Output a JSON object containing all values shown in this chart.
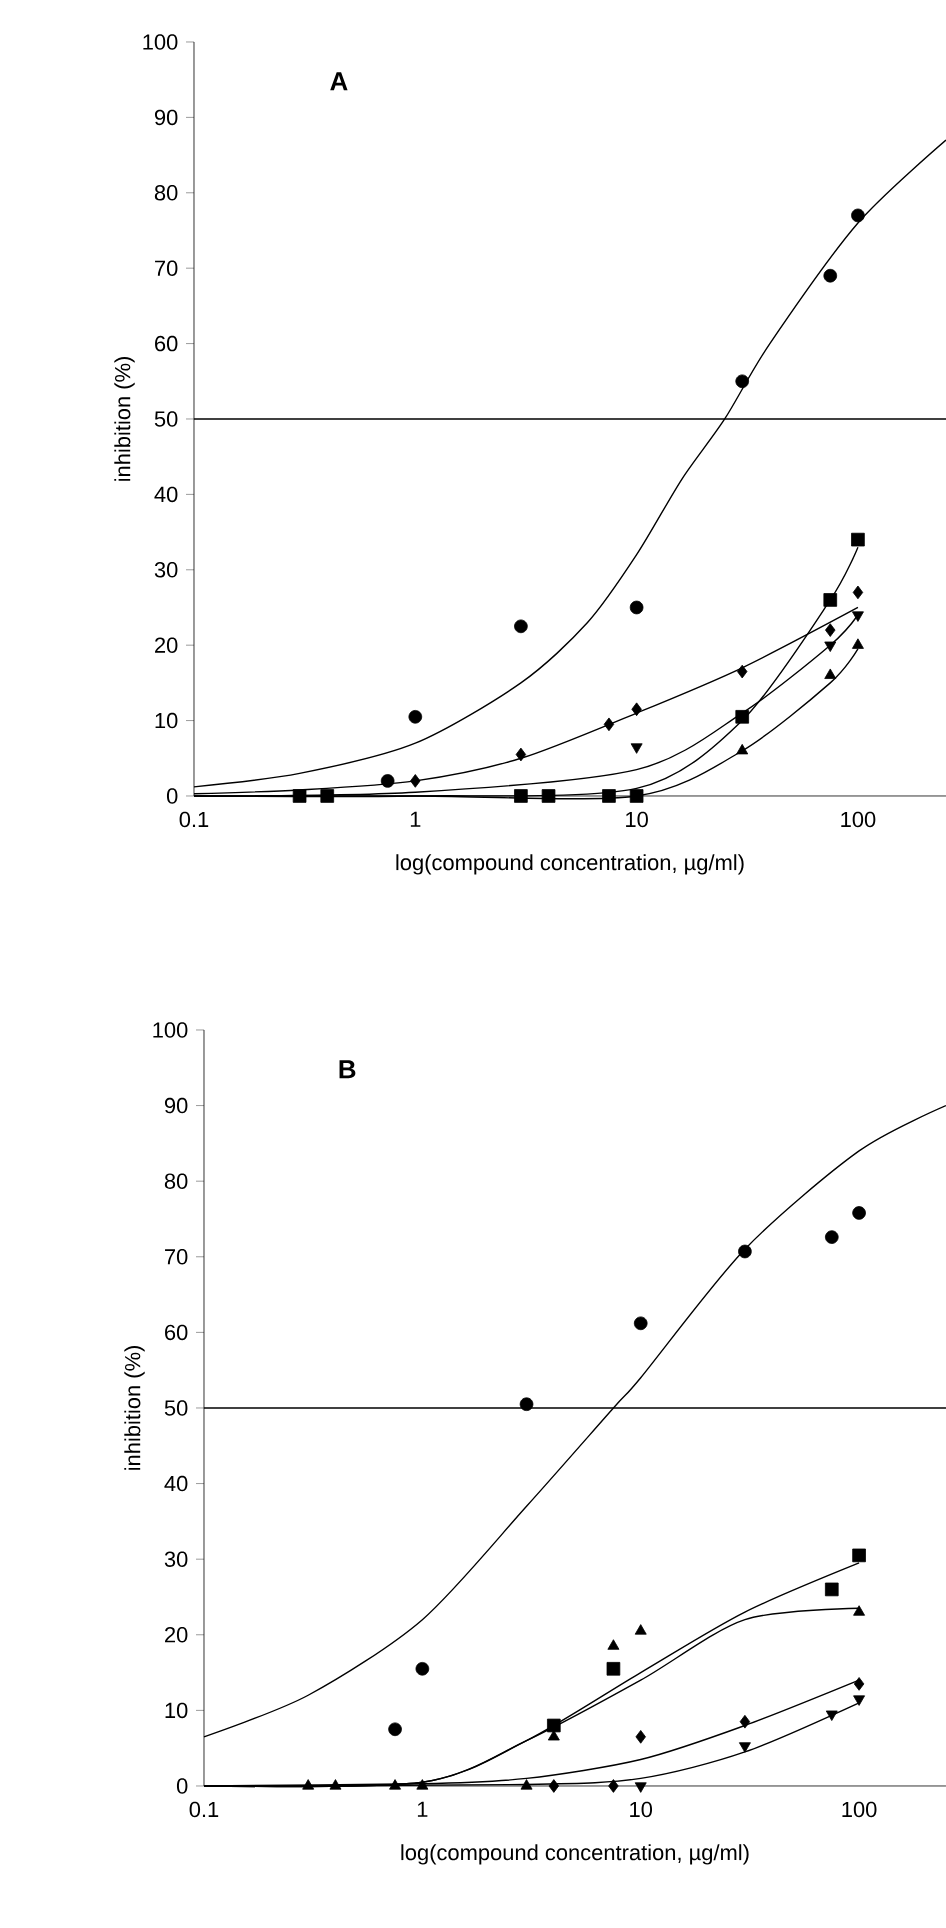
{
  "chart_data": [
    {
      "type": "scatter",
      "title": "A",
      "xlabel": "log(compound concentration, µg/ml)",
      "ylabel": "inhibition (%)",
      "log": "x",
      "xlim": [
        0.1,
        250
      ],
      "ylim": [
        0,
        100
      ],
      "xticks": [
        0.1,
        1,
        10,
        100
      ],
      "yticks": [
        0,
        10,
        20,
        30,
        40,
        50,
        60,
        70,
        80,
        90,
        100
      ],
      "ref_lines": [
        {
          "axis": "y",
          "value": 50
        }
      ],
      "series": [
        {
          "marker": "circle",
          "color": "#000000",
          "x": [
            0.75,
            1,
            3,
            10,
            30,
            75,
            100
          ],
          "values": [
            2,
            10.5,
            22.5,
            25,
            55,
            69,
            77
          ]
        },
        {
          "marker": "diamond",
          "color": "#000000",
          "x": [
            1,
            3,
            7.5,
            10,
            30,
            75,
            100
          ],
          "values": [
            2,
            5.5,
            9.5,
            11.5,
            16.5,
            22,
            27
          ]
        },
        {
          "marker": "square",
          "color": "#000000",
          "x": [
            0.3,
            0.4,
            3,
            4,
            7.5,
            10,
            30,
            75,
            100
          ],
          "values": [
            0,
            0,
            0,
            0,
            0,
            0,
            10.5,
            26,
            34
          ]
        },
        {
          "marker": "triangle-down",
          "color": "#000000",
          "x": [
            10,
            75,
            100
          ],
          "values": [
            6.5,
            20,
            24
          ]
        },
        {
          "marker": "triangle",
          "color": "#000000",
          "x": [
            30,
            75,
            100
          ],
          "values": [
            6,
            16,
            20
          ]
        },
        {
          "type": "line",
          "marker": "none",
          "color": "#000000",
          "x": [
            0.1,
            0.3,
            1,
            3,
            6,
            10,
            16,
            25,
            40,
            100,
            250
          ],
          "values": [
            1.2,
            3,
            7,
            15,
            23,
            32,
            42,
            50,
            60,
            76,
            87
          ]
        },
        {
          "type": "line",
          "marker": "none",
          "color": "#000000",
          "x": [
            0.1,
            0.3,
            1,
            3,
            10,
            30,
            100
          ],
          "values": [
            0.3,
            0.8,
            2,
            5,
            11,
            17,
            25
          ]
        },
        {
          "type": "line",
          "marker": "none",
          "color": "#000000",
          "x": [
            0.1,
            1,
            10,
            30,
            75,
            100
          ],
          "values": [
            0,
            0,
            1,
            10,
            26,
            33
          ]
        },
        {
          "type": "line",
          "marker": "none",
          "color": "#000000",
          "x": [
            0.1,
            1,
            10,
            30,
            75,
            100
          ],
          "values": [
            0,
            0.5,
            3.5,
            11,
            20,
            24
          ]
        },
        {
          "type": "line",
          "marker": "none",
          "color": "#000000",
          "x": [
            0.1,
            1,
            10,
            30,
            75,
            100
          ],
          "values": [
            0,
            0,
            0,
            6,
            15,
            19.5
          ]
        }
      ]
    },
    {
      "type": "scatter",
      "title": "B",
      "xlabel": "log(compound concentration, µg/ml)",
      "ylabel": "inhibition (%)",
      "log": "x",
      "xlim": [
        0.1,
        250
      ],
      "ylim": [
        0,
        100
      ],
      "xticks": [
        0.1,
        1,
        10,
        100
      ],
      "yticks": [
        0,
        10,
        20,
        30,
        40,
        50,
        60,
        70,
        80,
        90,
        100
      ],
      "ref_lines": [
        {
          "axis": "y",
          "value": 50
        }
      ],
      "series": [
        {
          "marker": "circle",
          "color": "#000000",
          "x": [
            0.75,
            1,
            3,
            10,
            30,
            75,
            100
          ],
          "values": [
            7.5,
            15.5,
            50.5,
            61.2,
            70.7,
            72.6,
            75.8
          ]
        },
        {
          "marker": "square",
          "color": "#000000",
          "x": [
            4,
            7.5,
            75,
            100
          ],
          "values": [
            8,
            15.5,
            26,
            30.5
          ]
        },
        {
          "marker": "triangle",
          "color": "#000000",
          "x": [
            0.3,
            0.4,
            0.75,
            1,
            3,
            4,
            7.5,
            10,
            100
          ],
          "values": [
            0,
            0,
            0,
            0,
            0,
            6.5,
            18.5,
            20.5,
            23
          ]
        },
        {
          "marker": "diamond",
          "color": "#000000",
          "x": [
            4,
            7.5,
            10,
            30,
            100
          ],
          "values": [
            0,
            0,
            6.5,
            8.5,
            13.5
          ]
        },
        {
          "marker": "triangle-down",
          "color": "#000000",
          "x": [
            10,
            30,
            75,
            100
          ],
          "values": [
            0,
            5.3,
            9.5,
            11.5
          ]
        },
        {
          "type": "line",
          "marker": "none",
          "color": "#000000",
          "x": [
            0.1,
            0.3,
            1,
            3,
            7.5,
            10,
            30,
            100,
            250
          ],
          "values": [
            6.5,
            12,
            22,
            37,
            50,
            54,
            71,
            84,
            90
          ]
        },
        {
          "type": "line",
          "marker": "none",
          "color": "#000000",
          "x": [
            0.1,
            1,
            3,
            10,
            30,
            100
          ],
          "values": [
            0,
            0.5,
            6,
            15,
            23,
            29.5
          ]
        },
        {
          "type": "line",
          "marker": "none",
          "color": "#000000",
          "x": [
            0.1,
            1,
            3,
            10,
            30,
            100
          ],
          "values": [
            0,
            0.5,
            6,
            14,
            22,
            23.5
          ]
        },
        {
          "type": "line",
          "marker": "none",
          "color": "#000000",
          "x": [
            0.1,
            1,
            3,
            10,
            30,
            100
          ],
          "values": [
            0,
            0.3,
            1,
            3.5,
            8,
            14
          ]
        },
        {
          "type": "line",
          "marker": "none",
          "color": "#000000",
          "x": [
            0.1,
            3,
            10,
            30,
            100
          ],
          "values": [
            0,
            0.2,
            1,
            4.5,
            11
          ]
        }
      ]
    }
  ]
}
